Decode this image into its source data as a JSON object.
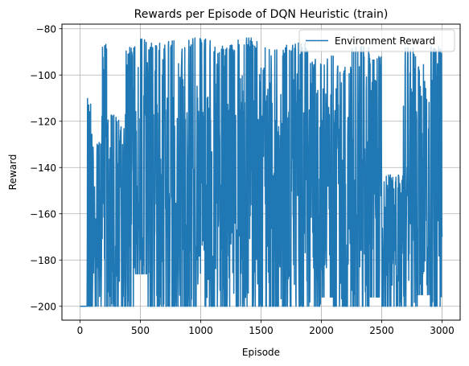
{
  "chart_data": {
    "type": "line",
    "title": "Rewards per Episode of DQN Heuristic (train)",
    "xlabel": "Episode",
    "ylabel": "Reward",
    "xlim": [
      -150,
      3150
    ],
    "ylim": [
      -206,
      -78
    ],
    "xticks": [
      0,
      500,
      1000,
      1500,
      2000,
      2500,
      3000
    ],
    "yticks": [
      -200,
      -180,
      -160,
      -140,
      -120,
      -100,
      -80
    ],
    "grid": true,
    "legend_position": "top-right",
    "series": [
      {
        "name": "Environment Reward",
        "color": "#1f77b4",
        "segments": [
          {
            "x0": 0,
            "x1": 60,
            "min": -200,
            "max": -200
          },
          {
            "x0": 60,
            "x1": 100,
            "min": -200,
            "max": -109
          },
          {
            "x0": 100,
            "x1": 180,
            "min": -200,
            "max": -128
          },
          {
            "x0": 180,
            "x1": 230,
            "min": -200,
            "max": -86
          },
          {
            "x0": 230,
            "x1": 310,
            "min": -200,
            "max": -117
          },
          {
            "x0": 310,
            "x1": 380,
            "min": -200,
            "max": -117
          },
          {
            "x0": 380,
            "x1": 450,
            "min": -200,
            "max": -88
          },
          {
            "x0": 450,
            "x1": 560,
            "min": -186,
            "max": -84
          },
          {
            "x0": 560,
            "x1": 700,
            "min": -200,
            "max": -86
          },
          {
            "x0": 700,
            "x1": 900,
            "min": -200,
            "max": -85
          },
          {
            "x0": 900,
            "x1": 1100,
            "min": -200,
            "max": -84
          },
          {
            "x0": 1100,
            "x1": 1300,
            "min": -200,
            "max": -87
          },
          {
            "x0": 1300,
            "x1": 1500,
            "min": -200,
            "max": -84
          },
          {
            "x0": 1500,
            "x1": 1700,
            "min": -200,
            "max": -88
          },
          {
            "x0": 1700,
            "x1": 1900,
            "min": -200,
            "max": -86
          },
          {
            "x0": 1900,
            "x1": 2000,
            "min": -200,
            "max": -93
          },
          {
            "x0": 2000,
            "x1": 2100,
            "min": -196,
            "max": -90
          },
          {
            "x0": 2100,
            "x1": 2250,
            "min": -200,
            "max": -96
          },
          {
            "x0": 2250,
            "x1": 2400,
            "min": -200,
            "max": -87
          },
          {
            "x0": 2400,
            "x1": 2500,
            "min": -196,
            "max": -92
          },
          {
            "x0": 2500,
            "x1": 2680,
            "min": -200,
            "max": -143
          },
          {
            "x0": 2680,
            "x1": 2800,
            "min": -200,
            "max": -88
          },
          {
            "x0": 2800,
            "x1": 2900,
            "min": -195,
            "max": -95
          },
          {
            "x0": 2900,
            "x1": 3000,
            "min": -200,
            "max": -87
          }
        ]
      }
    ]
  }
}
